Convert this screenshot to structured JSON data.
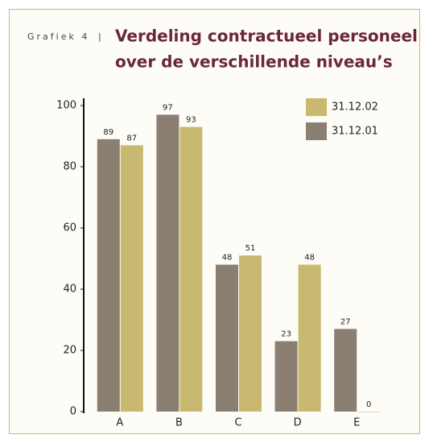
{
  "chart_data": {
    "type": "bar",
    "label": "Grafiek 4",
    "title": [
      "Verdeling contractueel personeel",
      "over de verschillende niveau’s"
    ],
    "categories": [
      "A",
      "B",
      "C",
      "D",
      "E"
    ],
    "series": [
      {
        "name": "31.12.01",
        "color": "#8b7f72",
        "values": [
          89,
          97,
          48,
          23,
          27
        ]
      },
      {
        "name": "31.12.02",
        "color": "#c8b870",
        "values": [
          87,
          93,
          51,
          48,
          0
        ]
      }
    ],
    "ylim": [
      0,
      100
    ],
    "yticks": [
      0,
      20,
      40,
      60,
      80,
      100
    ],
    "legend": "top-right"
  }
}
